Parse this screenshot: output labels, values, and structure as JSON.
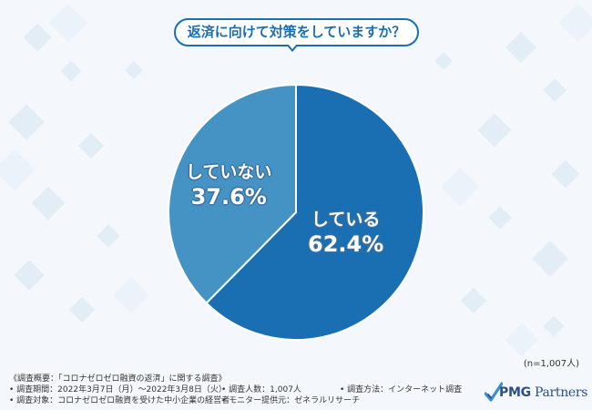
{
  "chart_data": {
    "type": "pie",
    "title": "返済に向けて対策をしていますか？",
    "slices": [
      {
        "label": "している",
        "value": 62.4,
        "display": "62.4%",
        "color": "#1a6fb3"
      },
      {
        "label": "していない",
        "value": 37.6,
        "display": "37.6%",
        "color": "#4593c4"
      }
    ],
    "start": "12 o'clock",
    "direction": "clockwise",
    "legend": "none",
    "note": "(n=1,007人)"
  },
  "survey": {
    "heading": "《調査概要：「コロナゼロゼロ融資の返済」に関する調査》",
    "rows": [
      [
        "• 調査期間：2022年3月7日（月）～2022年3月8日（火）",
        "• 調査人数：1,007人",
        "• 調査方法：インターネット調査"
      ],
      [
        "• 調査対象：コロナゼロゼロ融資を受けた中小企業の経営者",
        "• モニター提供元：ゼネラルリサーチ",
        ""
      ]
    ]
  },
  "logo": {
    "brand_bold": "PMG",
    "brand_rest": " Partners",
    "colors": {
      "navy": "#2c4f86",
      "blue": "#3a8fd0"
    }
  },
  "colors": {
    "accent": "#1a6fb3",
    "background": "#f4f8fc"
  }
}
